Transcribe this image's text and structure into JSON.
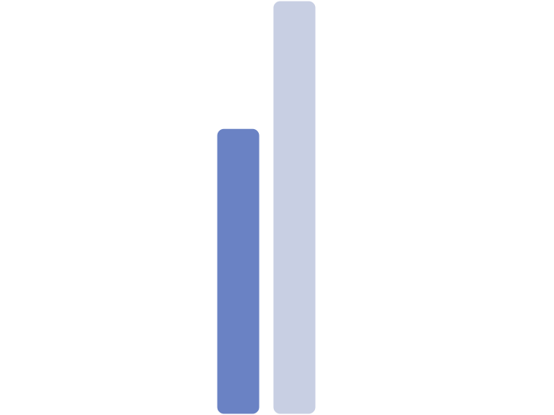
{
  "chart_data": {
    "type": "bar",
    "categories": [
      null,
      null
    ],
    "values": [
      69,
      100
    ],
    "colors": [
      "#6a82c4",
      "#c8cfe3"
    ],
    "ylim": [
      0,
      100
    ]
  }
}
